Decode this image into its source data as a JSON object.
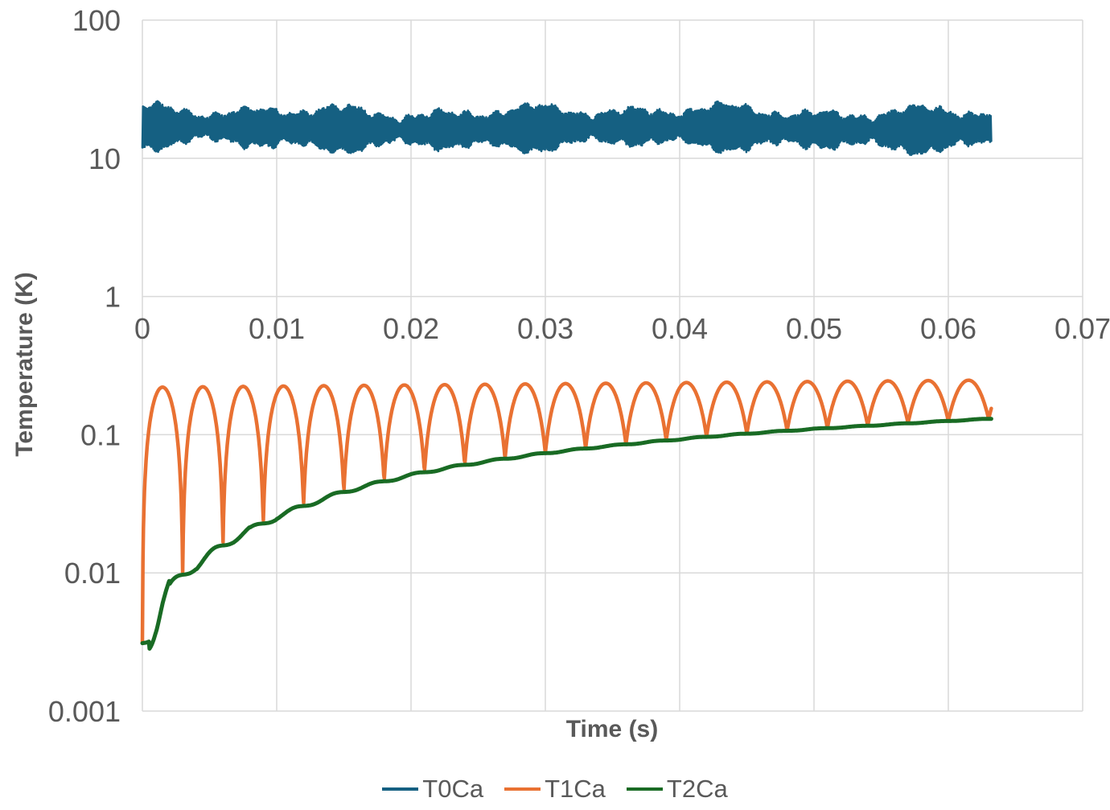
{
  "axes": {
    "x": {
      "title": "Time (s)",
      "scale": "linear",
      "tick_labels": [
        "0",
        "0.01",
        "0.02",
        "0.03",
        "0.04",
        "0.05",
        "0.06",
        "0.07"
      ],
      "tick_values": [
        0,
        0.01,
        0.02,
        0.03,
        0.04,
        0.05,
        0.06,
        0.07
      ]
    },
    "y": {
      "title": "Temperature (K)",
      "scale": "log",
      "tick_labels": [
        "100",
        "10",
        "1",
        "0.1",
        "0.01",
        "0.001"
      ],
      "tick_values": [
        100,
        10,
        1,
        0.1,
        0.01,
        0.001
      ]
    }
  },
  "chart_data": {
    "type": "line",
    "title": "",
    "xlabel": "Time (s)",
    "ylabel": "Temperature (K)",
    "x_range": [
      0,
      0.07
    ],
    "y_range": [
      0.001,
      100
    ],
    "y_scale": "log",
    "grid": true,
    "legend_position": "bottom",
    "data_end_time": 0.0632,
    "series": [
      {
        "name": "T0Ca",
        "color": "#156082",
        "kind": "noisy_band",
        "description": "dense high-frequency noisy signal forming a solid band",
        "center": 16.5,
        "band_min": 11.2,
        "band_max": 24.0,
        "seed": 11
      },
      {
        "name": "T1Ca",
        "color": "#E97132",
        "kind": "rectified_sine",
        "description": "rectified-sine bumps riding on the T2Ca baseline; valleys touch T2Ca",
        "period": 0.003,
        "num_bumps": 21,
        "peak_start": 0.22,
        "peak_slope": 0.45,
        "peak_end": 0.248,
        "start_value": 0.004
      },
      {
        "name": "T2Ca",
        "color": "#196B24",
        "kind": "monotone_rise_with_steps",
        "description": "monotonically rising curve with small plateaus synchronized to T1Ca valleys",
        "ripple_period": 0.003,
        "ripple_strength": 0.85,
        "anchors_t": [
          0,
          0.0005,
          0.001,
          0.0015,
          0.002,
          0.003,
          0.004,
          0.005,
          0.006,
          0.008,
          0.01,
          0.012,
          0.015,
          0.018,
          0.021,
          0.024,
          0.027,
          0.03,
          0.034,
          0.038,
          0.042,
          0.046,
          0.05,
          0.054,
          0.058,
          0.0615,
          0.0632
        ],
        "anchors_v": [
          0.0031,
          0.0034,
          0.0045,
          0.006,
          0.0075,
          0.0097,
          0.0112,
          0.0133,
          0.0158,
          0.0205,
          0.0253,
          0.0305,
          0.0385,
          0.046,
          0.0535,
          0.0605,
          0.067,
          0.0735,
          0.0815,
          0.089,
          0.0965,
          0.1035,
          0.11,
          0.116,
          0.1225,
          0.128,
          0.1305
        ]
      }
    ]
  },
  "legend": {
    "items": [
      {
        "label": "T0Ca",
        "color": "#156082"
      },
      {
        "label": "T1Ca",
        "color": "#E97132"
      },
      {
        "label": "T2Ca",
        "color": "#196B24"
      }
    ]
  },
  "style": {
    "grid_color": "#D9D9D9",
    "text_color": "#595959",
    "background": "#FFFFFF"
  }
}
